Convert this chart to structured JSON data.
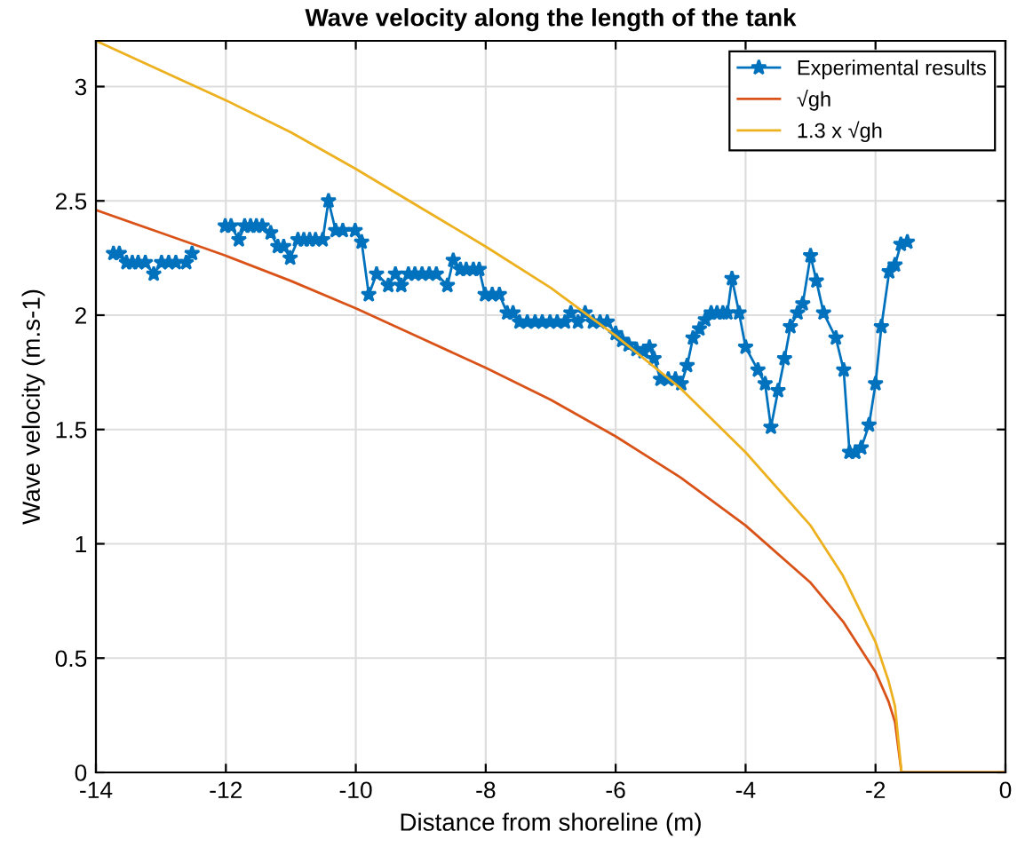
{
  "chart_data": {
    "type": "line",
    "title": "Wave velocity along the length of the tank",
    "xlabel": "Distance from shoreline (m)",
    "ylabel": "Wave velocity (m.s-1)",
    "xlim": [
      -14,
      0
    ],
    "xticks": [
      -14,
      -12,
      -10,
      -8,
      -6,
      -4,
      -2,
      0
    ],
    "ylim": [
      0,
      3.2
    ],
    "yticks": [
      0,
      0.5,
      1,
      1.5,
      2,
      2.5,
      3
    ],
    "grid": true,
    "legend": "top right",
    "series": [
      {
        "name": "Experimental results",
        "color": "#0072bd",
        "marker": "star",
        "x": [
          -13.73,
          -13.64,
          -13.53,
          -13.44,
          -13.35,
          -13.24,
          -13.11,
          -12.99,
          -12.88,
          -12.77,
          -12.61,
          -12.52,
          -12.3,
          -12.01,
          -11.92,
          -11.8,
          -11.71,
          -11.62,
          -11.53,
          -11.44,
          -11.31,
          -11.2,
          -11.11,
          -11.01,
          -10.89,
          -10.8,
          -10.71,
          -10.62,
          -10.51,
          -10.42,
          -10.31,
          -10.2,
          -10.01,
          -9.91,
          -9.8,
          -9.68,
          -9.5,
          -9.39,
          -9.3,
          -9.19,
          -9.09,
          -8.98,
          -8.87,
          -8.76,
          -8.59,
          -8.5,
          -8.39,
          -8.3,
          -8.19,
          -8.1,
          -8.01,
          -7.9,
          -7.79,
          -7.67,
          -7.58,
          -7.48,
          -7.36,
          -7.24,
          -7.13,
          -7.01,
          -6.9,
          -6.78,
          -6.69,
          -6.58,
          -6.47,
          -6.35,
          -6.24,
          -6.13,
          -6.0,
          -5.9,
          -5.8,
          -5.68,
          -5.57,
          -5.48,
          -5.41,
          -5.31,
          -5.19,
          -5.08,
          -4.99,
          -4.9,
          -4.81,
          -4.71,
          -4.62,
          -4.53,
          -4.44,
          -4.35,
          -4.28,
          -4.21,
          -4.1,
          -4.0,
          -3.81,
          -3.7,
          -3.61,
          -3.5,
          -3.4,
          -3.31,
          -3.2,
          -3.12,
          -3.0,
          -2.91,
          -2.8,
          -2.61,
          -2.49,
          -2.4,
          -2.31,
          -2.22,
          -2.1,
          -2.0,
          -1.91,
          -1.79,
          -1.7,
          -1.61,
          -1.51
        ],
        "values": [
          2.27,
          2.27,
          2.23,
          2.23,
          2.23,
          2.23,
          2.18,
          2.23,
          2.23,
          2.23,
          2.23,
          2.27,
          null,
          2.39,
          2.39,
          2.33,
          2.39,
          2.39,
          2.39,
          2.39,
          2.36,
          2.3,
          2.3,
          2.25,
          2.33,
          2.33,
          2.33,
          2.33,
          2.33,
          2.5,
          2.37,
          2.37,
          2.37,
          2.32,
          2.09,
          2.18,
          2.13,
          2.18,
          2.13,
          2.18,
          2.18,
          2.18,
          2.18,
          2.18,
          2.13,
          2.24,
          2.2,
          2.2,
          2.2,
          2.2,
          2.09,
          2.09,
          2.09,
          2.01,
          2.01,
          1.97,
          1.97,
          1.97,
          1.97,
          1.97,
          1.97,
          1.97,
          2.01,
          1.97,
          2.01,
          1.97,
          1.97,
          1.97,
          1.92,
          1.89,
          1.87,
          1.85,
          1.84,
          1.86,
          1.81,
          1.72,
          1.72,
          1.72,
          1.7,
          1.78,
          1.9,
          1.94,
          1.98,
          2.01,
          2.01,
          2.01,
          2.01,
          2.16,
          2.01,
          1.86,
          1.76,
          1.7,
          1.51,
          1.67,
          1.81,
          1.95,
          2.01,
          2.05,
          2.26,
          2.15,
          2.01,
          1.9,
          1.76,
          1.4,
          1.4,
          1.42,
          1.52,
          1.7,
          1.95,
          2.19,
          2.22,
          2.31,
          2.32
        ]
      },
      {
        "name": "√gh",
        "color": "#d95319",
        "x": [
          -14,
          -13,
          -12,
          -11,
          -10,
          -9,
          -8,
          -7,
          -6,
          -5,
          -4,
          -3,
          -2.5,
          -2,
          -1.8,
          -1.7,
          -1.6,
          0
        ],
        "values": [
          2.46,
          2.36,
          2.26,
          2.15,
          2.03,
          1.9,
          1.77,
          1.63,
          1.47,
          1.29,
          1.08,
          0.83,
          0.66,
          0.44,
          0.31,
          0.22,
          0,
          0
        ]
      },
      {
        "name": "1.3 x √gh",
        "color": "#edb120",
        "x": [
          -14,
          -13,
          -12,
          -11,
          -10,
          -9,
          -8,
          -7,
          -6,
          -5,
          -4,
          -3,
          -2.5,
          -2,
          -1.8,
          -1.7,
          -1.6,
          0
        ],
        "values": [
          3.2,
          3.07,
          2.94,
          2.8,
          2.64,
          2.47,
          2.3,
          2.12,
          1.91,
          1.68,
          1.4,
          1.08,
          0.86,
          0.57,
          0.4,
          0.29,
          0,
          0
        ]
      }
    ]
  }
}
